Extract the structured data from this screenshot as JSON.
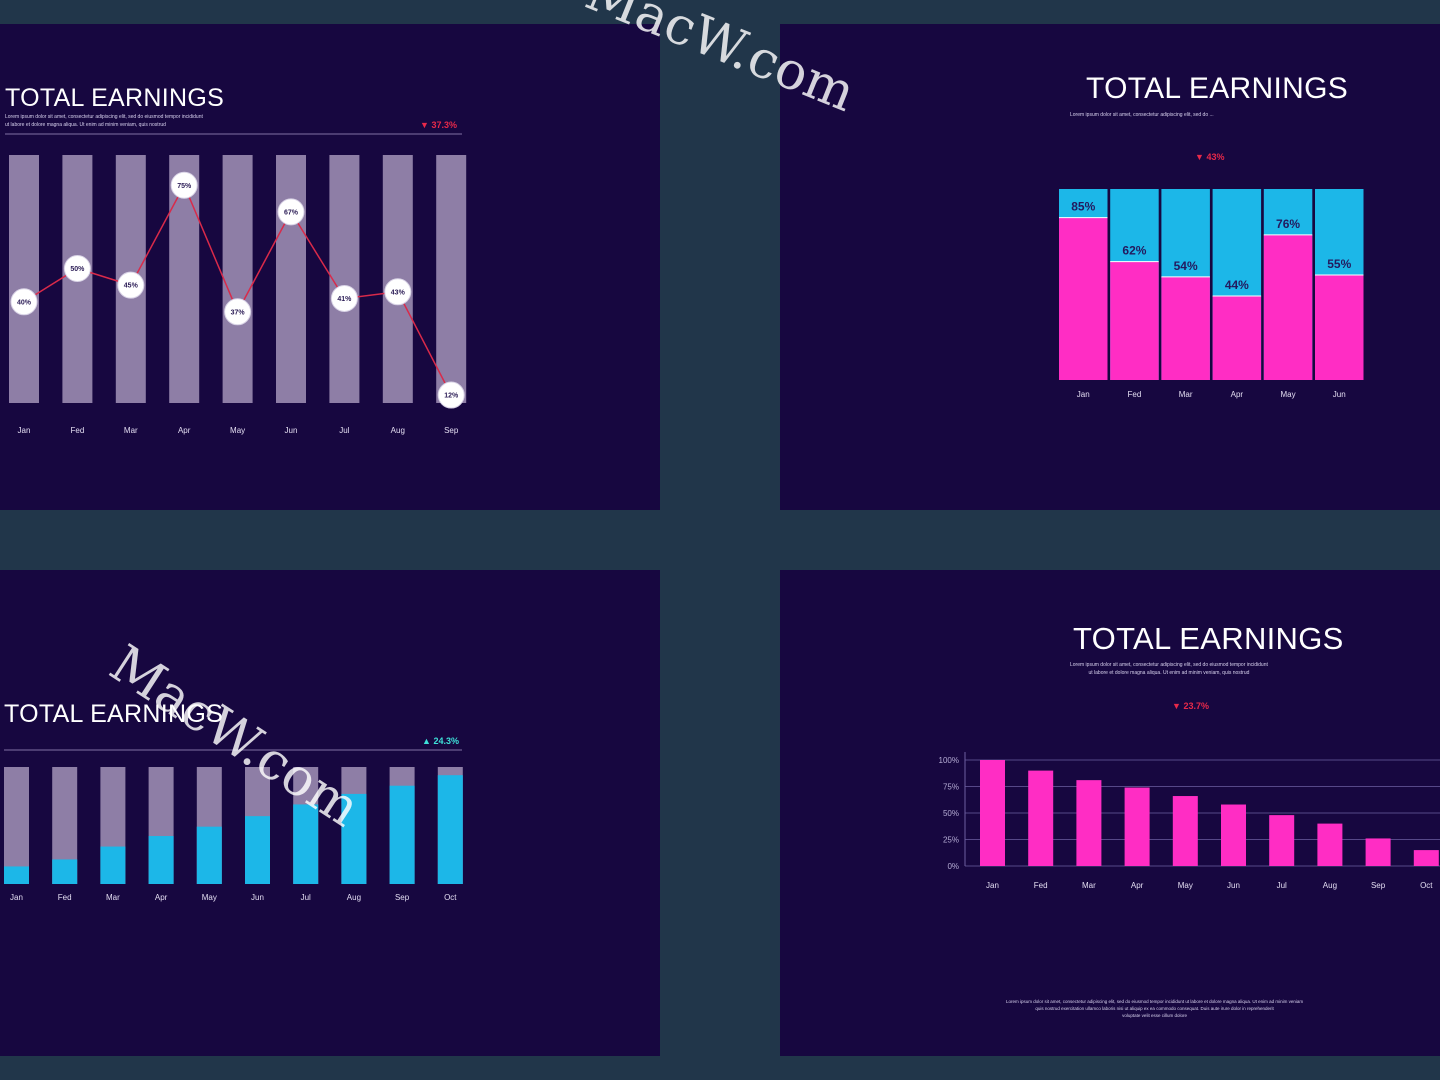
{
  "chart_data": [
    {
      "type": "bar",
      "title": "TOTAL EARNINGS",
      "subtitle_lines": [
        "Lorem ipsum dolor sit amet, consectetur adipiscing elit, sed do eiusmod tempor incididunt",
        "ut labore et dolore magna aliqua. Ut enim ad minim veniam, quis nostrud"
      ],
      "change": "37.3%",
      "change_direction": "down",
      "categories": [
        "Jan",
        "Fed",
        "Mar",
        "Apr",
        "May",
        "Jun",
        "Jul",
        "Aug",
        "Sep"
      ],
      "series": [
        {
          "type": "line",
          "values": [
            40,
            50,
            45,
            75,
            37,
            67,
            41,
            43,
            12
          ],
          "labels": [
            "40%",
            "50%",
            "45%",
            "75%",
            "37%",
            "67%",
            "41%",
            "43%",
            "12%"
          ]
        }
      ],
      "ylim": [
        0,
        100
      ],
      "grid": false,
      "colors": {
        "bar": "#8e7ea6",
        "line": "#d92a4a",
        "marker": "#ffffff"
      }
    },
    {
      "type": "bar",
      "title": "TOTAL EARNINGS",
      "subtitle_lines": [
        "Lorem ipsum dolor sit amet, consectetur adipiscing elit, sed do ..."
      ],
      "change": "43%",
      "change_direction": "down",
      "categories": [
        "Jan",
        "Fed",
        "Mar",
        "Apr",
        "May",
        "Jun"
      ],
      "series": [
        {
          "values": [
            85,
            62,
            54,
            44,
            76,
            55
          ],
          "labels": [
            "85%",
            "62%",
            "54%",
            "44%",
            "76%",
            "55%"
          ]
        }
      ],
      "ylim": [
        0,
        100
      ],
      "stacked": true,
      "grid": false,
      "colors": {
        "fill": "#ff2dc4",
        "remainder": "#1cb7e8",
        "label": "#241a5e"
      }
    },
    {
      "type": "bar",
      "title": "TOTAL EARNINGS",
      "change": "24.3%",
      "change_direction": "up",
      "categories": [
        "Jan",
        "Fed",
        "Mar",
        "Apr",
        "May",
        "Jun",
        "Jul",
        "Aug",
        "Sep",
        "Oct"
      ],
      "series": [
        {
          "values": [
            15,
            21,
            32,
            41,
            49,
            58,
            68,
            77,
            84,
            93
          ]
        }
      ],
      "ylim": [
        0,
        100
      ],
      "stacked": true,
      "grid": false,
      "colors": {
        "fill": "#1cb7e8",
        "remainder": "#8e7ea6"
      }
    },
    {
      "type": "bar",
      "title": "TOTAL EARNINGS",
      "subtitle_lines": [
        "Lorem ipsum dolor sit amet, consectetur adipiscing elit, sed do eiusmod tempor incididunt",
        "ut labore et dolore magna aliqua. Ut enim ad minim veniam, quis nostrud"
      ],
      "change": "23.7%",
      "change_direction": "down",
      "categories": [
        "Jan",
        "Fed",
        "Mar",
        "Apr",
        "May",
        "Jun",
        "Jul",
        "Aug",
        "Sep",
        "Oct"
      ],
      "series": [
        {
          "values": [
            100,
            90,
            81,
            74,
            66,
            58,
            48,
            40,
            26,
            15
          ]
        }
      ],
      "yticks": [
        "0%",
        "25%",
        "50%",
        "75%",
        "100%"
      ],
      "ylim": [
        0,
        100
      ],
      "grid": true,
      "colors": {
        "bar": "#ff2dc4",
        "grid": "#6d5fa0"
      },
      "footer_lines": [
        "Lorem ipsum dolor sit amet, consectetur adipiscing elit, sed do eiusmod tempor incididunt ut labore et dolore magna aliqua. Ut enim ad minim veniam",
        "quis nostrud exercitation ullamco laboris nisi ut aliquip ex ea commodo consequat. Duis aute irure dolor in reprehenderit",
        "voluptate velit esse cillum dolore"
      ]
    }
  ],
  "watermark": "MacW.com"
}
